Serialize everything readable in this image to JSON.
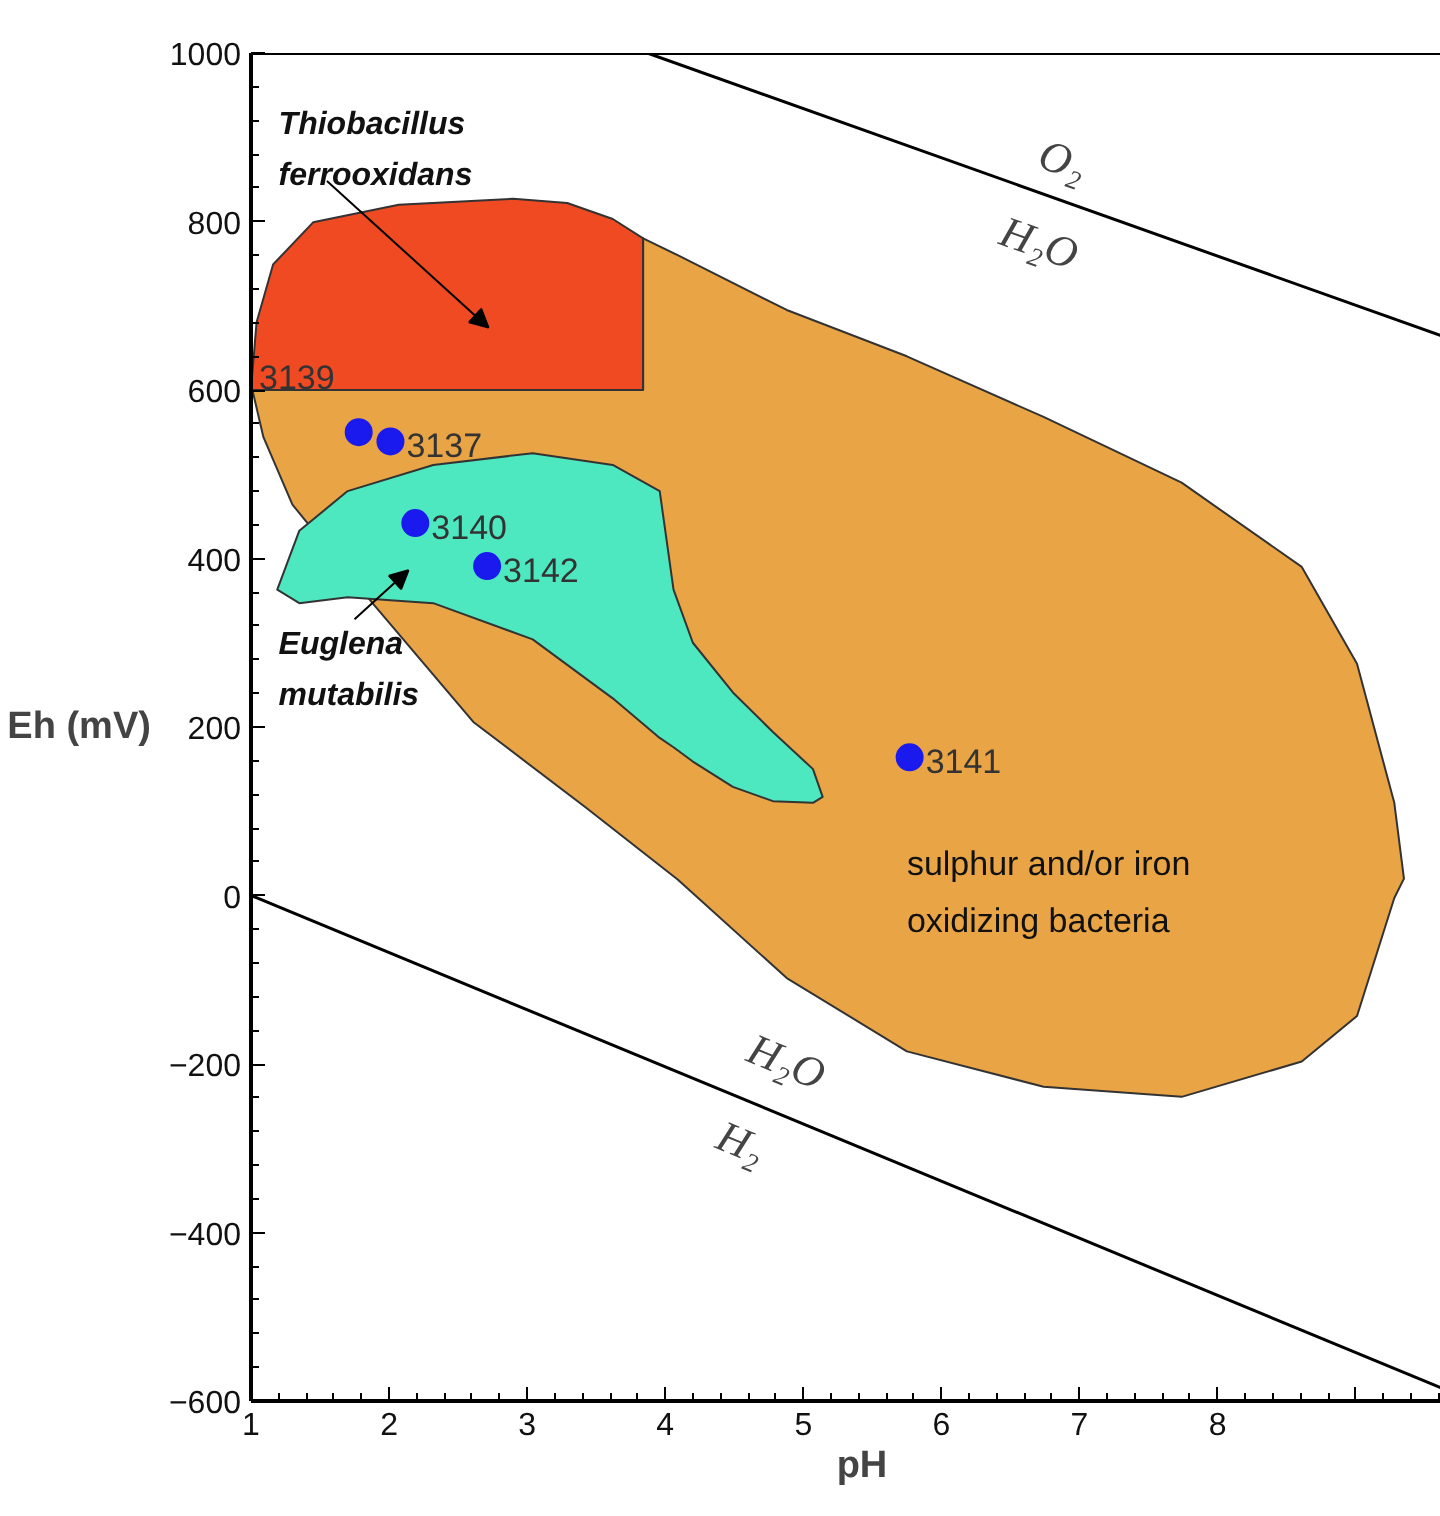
{
  "chart_data": {
    "type": "scatter",
    "xlabel": "pH",
    "ylabel": "Eh (mV)",
    "xlim": [
      1,
      9.85
    ],
    "ylim": [
      -600,
      1000
    ],
    "xticks": [
      1,
      2,
      3,
      4,
      5,
      6,
      7,
      8,
      {
        "value": 9,
        "label": null
      }
    ],
    "yticks": [
      -600,
      -400,
      -200,
      0,
      200,
      400,
      600,
      800,
      1000
    ],
    "grid": false,
    "series": [
      {
        "type": "area",
        "name": "Thiobacillus ferrooxidans",
        "color": "#f04a23",
        "x": [
          1.0,
          1.04,
          1.16,
          1.45,
          2.07,
          2.9,
          3.29,
          3.62,
          3.84,
          3.84
        ],
        "values": [
          600,
          680,
          749,
          799,
          820,
          827,
          822,
          803,
          780,
          600
        ]
      },
      {
        "type": "area",
        "name": "sulphur and/or iron oxidizing bacteria",
        "color": "#e8a445",
        "x": [
          1.01,
          3.84,
          3.84,
          4.09,
          4.88,
          5.75,
          6.74,
          7.74,
          8.61,
          9.01,
          9.28,
          9.35,
          9.28,
          9.01,
          8.61,
          7.74,
          6.74,
          5.75,
          4.88,
          4.09,
          3.42,
          2.61,
          1.88,
          1.3,
          1.09
        ],
        "values": [
          600,
          600,
          780,
          760,
          695,
          640,
          568,
          490,
          390,
          275,
          110,
          20,
          -3,
          -143,
          -197,
          -239,
          -227,
          -185,
          -98,
          19,
          105,
          206,
          347,
          464,
          544
        ]
      },
      {
        "type": "area",
        "name": "Euglena mutabilis",
        "color": "#4ee8c0",
        "x": [
          1.19,
          1.35,
          1.7,
          2.32,
          3.04,
          3.62,
          3.96,
          4.06,
          4.2,
          4.49,
          4.78,
          5.07,
          5.14,
          5.07,
          4.78,
          4.49,
          4.2,
          4.06,
          3.96,
          3.62,
          3.04,
          2.32,
          1.7,
          1.35
        ],
        "values": [
          363,
          433,
          480,
          511,
          525,
          511,
          480,
          363,
          300,
          241,
          194,
          150,
          117,
          110,
          112,
          129,
          159,
          176,
          187,
          234,
          304,
          347,
          354,
          347
        ]
      },
      {
        "type": "line",
        "color": "#000000",
        "x": [
          3.87,
          9.85
        ],
        "values": [
          1000,
          651
        ]
      },
      {
        "type": "line",
        "color": "#000000",
        "x": [
          1.0,
          9.85
        ],
        "values": [
          0,
          -600
        ]
      },
      {
        "color": "#1a1aee",
        "marker": "circle",
        "x": [
          1.78,
          2.01,
          2.19,
          2.71,
          5.77
        ],
        "values": [
          550,
          539,
          442,
          391,
          164
        ]
      }
    ],
    "annotations": [
      {
        "text": "3137",
        "x": 2.01,
        "y": 539
      },
      {
        "text": "3140",
        "x": 2.19,
        "y": 442
      },
      {
        "text": "3142",
        "x": 2.71,
        "y": 391
      },
      {
        "text": "3141",
        "x": 5.77,
        "y": 164
      },
      "3139",
      "O₂",
      "H₂O",
      "H₂O",
      "H₂"
    ]
  }
}
